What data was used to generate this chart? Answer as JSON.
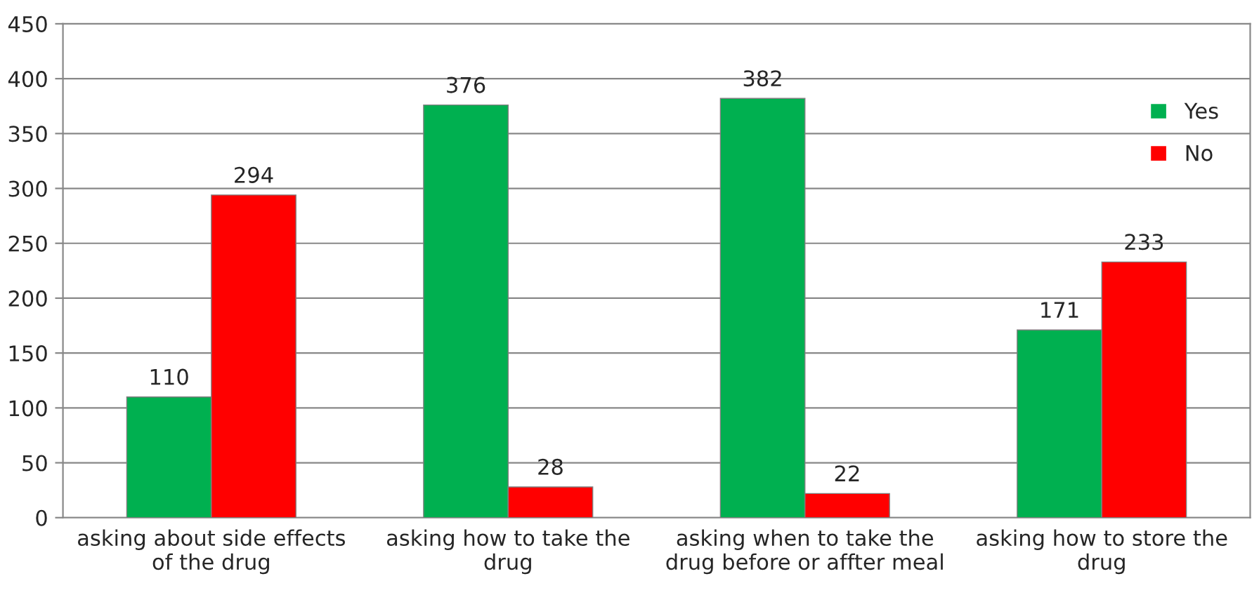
{
  "chart_data": {
    "type": "bar",
    "categories": [
      "asking about side effects\nof the drug",
      "asking how to take the\ndrug",
      "asking when to take the\ndrug before or affter meal",
      "asking how to store the\ndrug"
    ],
    "series": [
      {
        "name": "Yes",
        "color": "#00b050",
        "values": [
          110,
          376,
          382,
          171
        ]
      },
      {
        "name": "No",
        "color": "#ff0000",
        "values": [
          294,
          28,
          22,
          233
        ]
      }
    ],
    "ylim": [
      0,
      450
    ],
    "yticks": [
      0,
      50,
      100,
      150,
      200,
      250,
      300,
      350,
      400,
      450
    ],
    "grid": "y",
    "legend": "top right",
    "data_labels": true
  }
}
